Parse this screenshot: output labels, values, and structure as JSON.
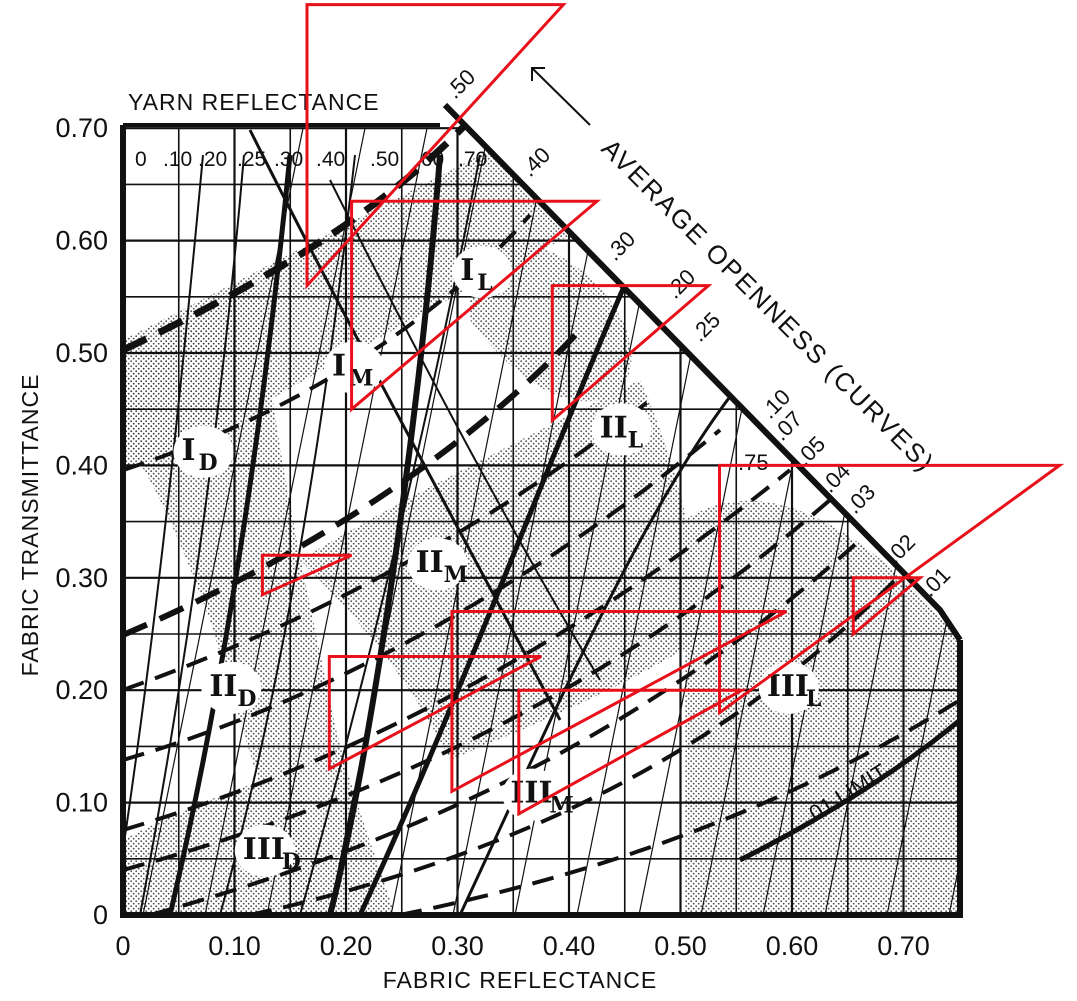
{
  "chart_data": {
    "type": "scatter",
    "xlabel": "FABRIC REFLECTANCE",
    "ylabel": "FABRIC TRANSMITTANCE",
    "xlim": [
      0,
      0.75
    ],
    "ylim": [
      0,
      0.7
    ],
    "grid": true,
    "x_ticks": [
      "0",
      "0.10",
      "0.20",
      "0.30",
      "0.40",
      "0.50",
      "0.60",
      "0.70"
    ],
    "x_tick_values": [
      0,
      0.1,
      0.2,
      0.3,
      0.4,
      0.5,
      0.6,
      0.7
    ],
    "y_ticks": [
      "0",
      "0.10",
      "0.20",
      "0.30",
      "0.40",
      "0.50",
      "0.60",
      "0.70"
    ],
    "y_tick_values": [
      0,
      0.1,
      0.2,
      0.3,
      0.4,
      0.5,
      0.6,
      0.7
    ],
    "yarn_reflectance": {
      "title": "YARN REFLECTANCE",
      "labels": [
        "0",
        ".10",
        ".20",
        ".25",
        ".30",
        ".40",
        ".50",
        ".60",
        ".70"
      ],
      "values": [
        0,
        0.1,
        0.2,
        0.25,
        0.3,
        0.4,
        0.5,
        0.6,
        0.7
      ]
    },
    "average_openness": {
      "title": "AVERAGE OPENNESS (CURVES)",
      "labels": [
        ".50",
        ".40",
        ".30",
        ".20",
        ".25",
        ".10",
        ".07",
        ".05",
        ".04",
        ".03",
        ".02",
        ".01",
        ".75"
      ],
      "values": [
        0.5,
        0.4,
        0.3,
        0.2,
        0.25,
        0.1,
        0.07,
        0.05,
        0.04,
        0.03,
        0.02,
        0.01,
        0.75
      ]
    },
    "limit_label": ".01 LIMIT",
    "zones": [
      {
        "roman": "I",
        "sub": "L",
        "x": 0.315,
        "y": 0.565
      },
      {
        "roman": "I",
        "sub": "M",
        "x": 0.2,
        "y": 0.48
      },
      {
        "roman": "I",
        "sub": "D",
        "x": 0.065,
        "y": 0.405
      },
      {
        "roman": "II",
        "sub": "L",
        "x": 0.44,
        "y": 0.425
      },
      {
        "roman": "II",
        "sub": "M",
        "x": 0.275,
        "y": 0.305
      },
      {
        "roman": "II",
        "sub": "D",
        "x": 0.09,
        "y": 0.195
      },
      {
        "roman": "III",
        "sub": "L",
        "x": 0.59,
        "y": 0.195
      },
      {
        "roman": "III",
        "sub": "M",
        "x": 0.36,
        "y": 0.1
      },
      {
        "roman": "III",
        "sub": "D",
        "x": 0.12,
        "y": 0.05
      }
    ],
    "annotation_triangles": [
      {
        "color": "#e8101a",
        "points": [
          [
            0.165,
            0.56
          ],
          [
            0.165,
            0.81
          ],
          [
            0.395,
            0.81
          ]
        ]
      },
      {
        "color": "#e8101a",
        "points": [
          [
            0.205,
            0.45
          ],
          [
            0.205,
            0.635
          ],
          [
            0.425,
            0.635
          ]
        ]
      },
      {
        "color": "#e8101a",
        "points": [
          [
            0.385,
            0.44
          ],
          [
            0.385,
            0.56
          ],
          [
            0.525,
            0.56
          ]
        ]
      },
      {
        "color": "#e8101a",
        "points": [
          [
            0.535,
            0.18
          ],
          [
            0.535,
            0.4
          ],
          [
            0.84,
            0.4
          ]
        ]
      },
      {
        "color": "#e8101a",
        "points": [
          [
            0.125,
            0.285
          ],
          [
            0.125,
            0.32
          ],
          [
            0.205,
            0.32
          ]
        ]
      },
      {
        "color": "#e8101a",
        "points": [
          [
            0.295,
            0.11
          ],
          [
            0.295,
            0.27
          ],
          [
            0.595,
            0.27
          ]
        ]
      },
      {
        "color": "#e8101a",
        "points": [
          [
            0.185,
            0.13
          ],
          [
            0.185,
            0.23
          ],
          [
            0.375,
            0.23
          ]
        ]
      },
      {
        "color": "#e8101a",
        "points": [
          [
            0.355,
            0.09
          ],
          [
            0.355,
            0.2
          ],
          [
            0.555,
            0.2
          ]
        ]
      },
      {
        "color": "#e8101a",
        "points": [
          [
            0.655,
            0.25
          ],
          [
            0.655,
            0.3
          ],
          [
            0.715,
            0.3
          ]
        ]
      }
    ]
  }
}
